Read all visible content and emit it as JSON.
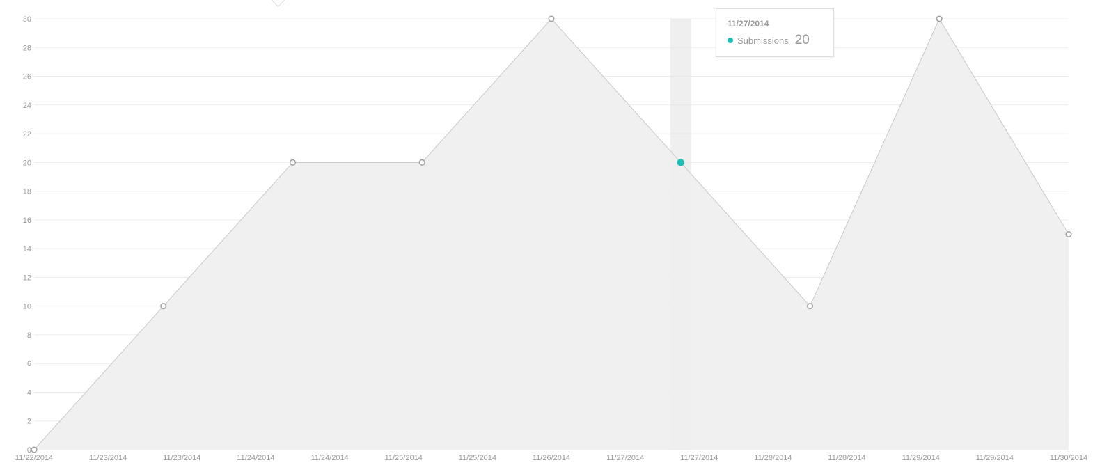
{
  "chart_data": {
    "type": "area",
    "title": "",
    "xlabel": "",
    "ylabel": "",
    "ylim": [
      0,
      30
    ],
    "y_ticks": [
      0,
      2,
      4,
      6,
      8,
      10,
      12,
      14,
      16,
      18,
      20,
      22,
      24,
      26,
      28,
      30
    ],
    "x_tick_labels": [
      "11/22/2014",
      "11/23/2014",
      "11/23/2014",
      "11/24/2014",
      "11/24/2014",
      "11/25/2014",
      "11/25/2014",
      "11/26/2014",
      "11/27/2014",
      "11/27/2014",
      "11/28/2014",
      "11/28/2014",
      "11/29/2014",
      "11/29/2014",
      "11/30/2014"
    ],
    "x_range": [
      0,
      8
    ],
    "grid": true,
    "series": [
      {
        "name": "Submissions",
        "points": [
          {
            "x": 0,
            "y": 0
          },
          {
            "x": 1,
            "y": 10
          },
          {
            "x": 2,
            "y": 20
          },
          {
            "x": 3,
            "y": 20
          },
          {
            "x": 4,
            "y": 30
          },
          {
            "x": 5,
            "y": 20
          },
          {
            "x": 6,
            "y": 10
          },
          {
            "x": 7,
            "y": 30
          },
          {
            "x": 8,
            "y": 15
          }
        ]
      }
    ],
    "highlight_index": 5
  },
  "colors": {
    "area_fill": "#eeeeee",
    "line": "#c8c8c8",
    "marker_stroke": "#a0a0a0",
    "highlight": "#1fbfb8",
    "hover_band": "#e4e4e4"
  },
  "tooltip": {
    "date": "11/27/2014",
    "series_name": "Submissions",
    "value": "20"
  }
}
